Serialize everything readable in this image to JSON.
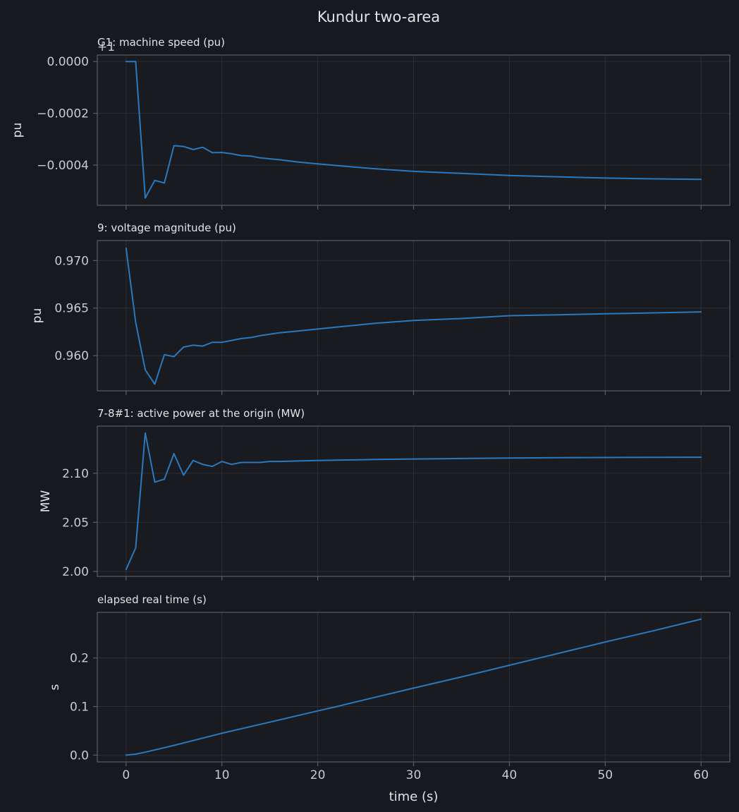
{
  "title": "Kundur two-area",
  "xlabel": "time (s)",
  "colors": {
    "background": "#17191f",
    "axes_face": "#191b21",
    "spine": "#5a5d66",
    "grid": "#2b2e36",
    "tick_text": "#c8cad0",
    "label_text": "#e2e3e6",
    "series": "#2a78bd"
  },
  "chart_data": [
    {
      "type": "line",
      "title": "G1: machine speed (pu)",
      "ylabel": "pu",
      "offset_text": "+1",
      "xlim": [
        -3,
        63
      ],
      "ylim": [
        -0.000555,
        2.5e-05
      ],
      "xticks": [
        0,
        10,
        20,
        30,
        40,
        50,
        60
      ],
      "yticks": [
        {
          "value": 0,
          "label": "0.0000"
        },
        {
          "value": -0.0002,
          "label": "−0.0002"
        },
        {
          "value": -0.0004,
          "label": "−0.0004"
        }
      ],
      "grid": true,
      "show_xticklabels": false,
      "x": [
        0,
        1,
        2,
        3,
        4,
        5,
        6,
        7,
        8,
        9,
        10,
        11,
        12,
        13,
        14,
        16,
        18,
        20,
        23,
        26,
        30,
        35,
        40,
        45,
        50,
        55,
        60
      ],
      "y": [
        0,
        0,
        -0.000527,
        -0.000459,
        -0.000469,
        -0.000325,
        -0.000328,
        -0.00034,
        -0.000331,
        -0.000352,
        -0.000351,
        -0.000356,
        -0.000363,
        -0.000365,
        -0.000372,
        -0.000379,
        -0.000388,
        -0.000395,
        -0.000405,
        -0.000414,
        -0.000424,
        -0.000432,
        -0.00044,
        -0.000445,
        -0.00045,
        -0.000453,
        -0.000455
      ]
    },
    {
      "type": "line",
      "title": "9: voltage magnitude (pu)",
      "ylabel": "pu",
      "xlim": [
        -3,
        63
      ],
      "ylim": [
        0.9563,
        0.9721
      ],
      "xticks": [
        0,
        10,
        20,
        30,
        40,
        50,
        60
      ],
      "yticks": [
        {
          "value": 0.96,
          "label": "0.960"
        },
        {
          "value": 0.965,
          "label": "0.965"
        },
        {
          "value": 0.97,
          "label": "0.970"
        }
      ],
      "grid": true,
      "show_xticklabels": false,
      "x": [
        0,
        1,
        2,
        3,
        4,
        5,
        6,
        7,
        8,
        9,
        10,
        11,
        12,
        13,
        14,
        16,
        18,
        20,
        23,
        26,
        30,
        35,
        40,
        45,
        50,
        55,
        60
      ],
      "y": [
        0.9713,
        0.9635,
        0.9585,
        0.957,
        0.9601,
        0.9599,
        0.9609,
        0.9611,
        0.961,
        0.9614,
        0.9614,
        0.9616,
        0.9618,
        0.9619,
        0.9621,
        0.9624,
        0.9626,
        0.9628,
        0.9631,
        0.9634,
        0.9637,
        0.9639,
        0.9642,
        0.9643,
        0.9644,
        0.9645,
        0.9646
      ]
    },
    {
      "type": "line",
      "title": "7-8#1: active power at the origin (MW)",
      "ylabel": "MW",
      "xlim": [
        -3,
        63
      ],
      "ylim": [
        1.995,
        2.148
      ],
      "xticks": [
        0,
        10,
        20,
        30,
        40,
        50,
        60
      ],
      "yticks": [
        {
          "value": 2.0,
          "label": "2.00"
        },
        {
          "value": 2.05,
          "label": "2.05"
        },
        {
          "value": 2.1,
          "label": "2.10"
        }
      ],
      "grid": true,
      "show_xticklabels": false,
      "x": [
        0,
        1,
        2,
        3,
        4,
        5,
        6,
        7,
        8,
        9,
        10,
        11,
        12,
        13,
        14,
        15,
        16,
        18,
        20,
        23,
        26,
        30,
        35,
        40,
        45,
        50,
        55,
        60
      ],
      "y": [
        2.002,
        2.024,
        2.141,
        2.091,
        2.094,
        2.12,
        2.098,
        2.113,
        2.109,
        2.107,
        2.112,
        2.109,
        2.111,
        2.111,
        2.111,
        2.112,
        2.112,
        2.1125,
        2.113,
        2.1135,
        2.114,
        2.1145,
        2.115,
        2.1155,
        2.1158,
        2.116,
        2.1162,
        2.1163
      ]
    },
    {
      "type": "line",
      "title": "elapsed real time (s)",
      "ylabel": "s",
      "xlim": [
        -3,
        63
      ],
      "ylim": [
        -0.014,
        0.294
      ],
      "xticks": [
        0,
        10,
        20,
        30,
        40,
        50,
        60
      ],
      "yticks": [
        {
          "value": 0.0,
          "label": "0.0"
        },
        {
          "value": 0.1,
          "label": "0.1"
        },
        {
          "value": 0.2,
          "label": "0.2"
        }
      ],
      "grid": true,
      "show_xticklabels": true,
      "x": [
        0,
        1,
        2,
        5,
        10,
        15,
        20,
        22,
        23,
        30,
        35,
        40,
        45,
        49,
        50,
        55,
        60
      ],
      "y": [
        0,
        0.002,
        0.006,
        0.02,
        0.045,
        0.068,
        0.091,
        0.1,
        0.105,
        0.138,
        0.161,
        0.185,
        0.209,
        0.228,
        0.233,
        0.256,
        0.28
      ]
    }
  ]
}
